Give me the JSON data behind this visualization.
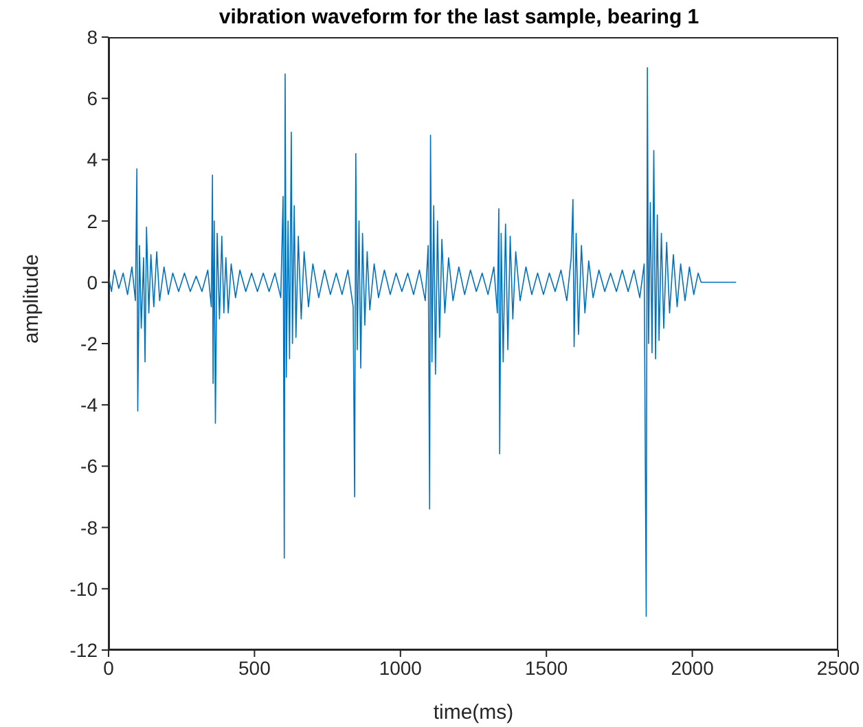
{
  "chart_data": {
    "type": "line",
    "title": "vibration waveform for the last sample, bearing 1",
    "xlabel": "time(ms)",
    "ylabel": "amplitude",
    "xlim": [
      0,
      2500
    ],
    "xticks": [
      0,
      500,
      1000,
      1500,
      2000,
      2500
    ],
    "ylim": [
      -12,
      8
    ],
    "yticks": [
      -12,
      -10,
      -8,
      -6,
      -4,
      -2,
      0,
      2,
      4,
      6,
      8
    ],
    "grid": false,
    "marker": "none",
    "line_style": "solid",
    "series": [
      {
        "color": "#0072bd",
        "x": [
          0,
          10,
          20,
          35,
          50,
          65,
          80,
          92,
          97,
          100,
          106,
          112,
          120,
          125,
          130,
          138,
          145,
          155,
          165,
          175,
          190,
          205,
          220,
          240,
          260,
          280,
          300,
          320,
          340,
          352,
          356,
          358,
          362,
          366,
          372,
          380,
          388,
          395,
          402,
          410,
          420,
          435,
          450,
          470,
          490,
          510,
          530,
          550,
          570,
          590,
          598,
          602,
          605,
          609,
          615,
          620,
          626,
          630,
          636,
          642,
          650,
          660,
          670,
          685,
          700,
          720,
          740,
          760,
          780,
          800,
          820,
          838,
          843,
          847,
          852,
          858,
          864,
          870,
          878,
          886,
          895,
          910,
          925,
          945,
          965,
          985,
          1005,
          1025,
          1045,
          1065,
          1085,
          1095,
          1100,
          1103,
          1108,
          1114,
          1120,
          1127,
          1134,
          1142,
          1152,
          1165,
          1180,
          1200,
          1220,
          1240,
          1260,
          1280,
          1300,
          1320,
          1332,
          1337,
          1340,
          1345,
          1352,
          1360,
          1368,
          1376,
          1385,
          1395,
          1410,
          1430,
          1450,
          1470,
          1490,
          1510,
          1530,
          1550,
          1570,
          1585,
          1591,
          1595,
          1602,
          1610,
          1620,
          1632,
          1645,
          1660,
          1680,
          1700,
          1720,
          1740,
          1760,
          1780,
          1800,
          1820,
          1835,
          1842,
          1846,
          1850,
          1856,
          1862,
          1868,
          1874,
          1880,
          1886,
          1894,
          1902,
          1912,
          1922,
          1935,
          1948,
          1960,
          1975,
          1990,
          2005,
          2020,
          2030,
          2150
        ],
        "values": [
          0.2,
          -0.3,
          0.4,
          -0.2,
          0.3,
          -0.4,
          0.5,
          -0.6,
          3.7,
          -4.2,
          1.2,
          -1.5,
          0.8,
          -2.6,
          1.8,
          -1.0,
          0.9,
          -0.8,
          1.0,
          -0.6,
          0.5,
          -0.4,
          0.3,
          -0.3,
          0.3,
          -0.3,
          0.2,
          -0.3,
          0.4,
          -0.8,
          3.5,
          -3.3,
          2.0,
          -4.6,
          1.6,
          -1.2,
          1.5,
          -1.0,
          0.8,
          -1.0,
          0.6,
          -0.5,
          0.4,
          -0.3,
          0.3,
          -0.3,
          0.3,
          -0.3,
          0.3,
          -0.5,
          2.8,
          -9.0,
          6.8,
          -3.1,
          2.0,
          -2.5,
          4.9,
          -2.0,
          2.5,
          -1.8,
          1.5,
          -1.2,
          1.0,
          -0.8,
          0.6,
          -0.5,
          0.4,
          -0.4,
          0.3,
          -0.4,
          0.4,
          -0.8,
          -7.0,
          4.2,
          -2.2,
          2.0,
          -2.8,
          1.6,
          -1.4,
          1.0,
          -0.9,
          0.6,
          -0.5,
          0.4,
          -0.4,
          0.3,
          -0.3,
          0.3,
          -0.4,
          0.4,
          -0.6,
          1.2,
          -7.4,
          4.8,
          -2.6,
          2.5,
          -3.0,
          2.0,
          -1.8,
          1.4,
          -1.0,
          0.8,
          -0.6,
          0.5,
          -0.4,
          0.4,
          -0.3,
          0.3,
          -0.4,
          0.5,
          -1.0,
          2.4,
          -5.6,
          1.6,
          -2.6,
          1.9,
          -2.2,
          1.5,
          -1.2,
          1.0,
          -0.6,
          0.5,
          -0.4,
          0.3,
          -0.4,
          0.3,
          -0.3,
          0.4,
          -0.6,
          0.8,
          2.7,
          -2.1,
          1.6,
          -1.7,
          1.2,
          -1.0,
          0.7,
          -0.5,
          0.4,
          -0.3,
          0.3,
          -0.3,
          0.4,
          -0.3,
          0.4,
          -0.5,
          0.6,
          -10.9,
          7.0,
          -2.0,
          2.6,
          -2.3,
          4.3,
          -2.5,
          2.2,
          -1.9,
          1.6,
          -1.5,
          1.3,
          -1.0,
          0.9,
          -0.8,
          0.6,
          -0.6,
          0.5,
          -0.4,
          0.3,
          0,
          0
        ]
      }
    ]
  }
}
